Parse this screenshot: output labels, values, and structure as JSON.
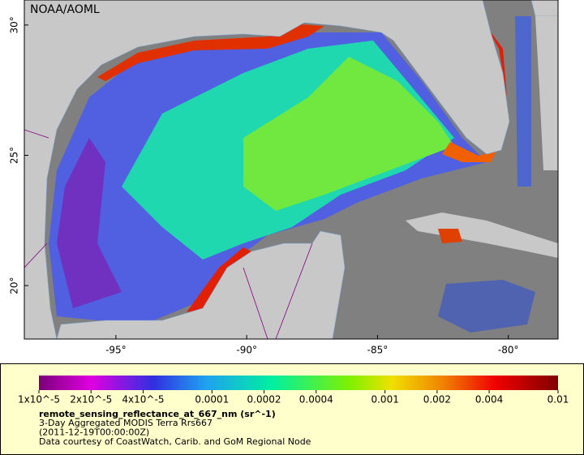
{
  "map": {
    "watermark": "NOAA/AOML",
    "xlim": [
      -98.5,
      -78.1
    ],
    "ylim": [
      17.95,
      30.96
    ],
    "xticks": [
      {
        "value": -95,
        "label": "-95°"
      },
      {
        "value": -90,
        "label": "-90°"
      },
      {
        "value": -85,
        "label": "-85°"
      },
      {
        "value": -80,
        "label": "-80°"
      }
    ],
    "yticks": [
      {
        "value": 30,
        "label": "30°"
      },
      {
        "value": 25,
        "label": "25°"
      },
      {
        "value": 20,
        "label": "20°"
      }
    ]
  },
  "colorbar": {
    "scale": "log",
    "lim": [
      1e-05,
      0.01
    ],
    "ticks": [
      {
        "value": 1e-05,
        "label": "1x10^-5"
      },
      {
        "value": 2e-05,
        "label": "2x10^-5"
      },
      {
        "value": 4e-05,
        "label": "4x10^-5"
      },
      {
        "value": 0.0001,
        "label": "0.0001"
      },
      {
        "value": 0.0002,
        "label": "0.0002"
      },
      {
        "value": 0.0004,
        "label": "0.0004"
      },
      {
        "value": 0.001,
        "label": "0.001"
      },
      {
        "value": 0.002,
        "label": "0.002"
      },
      {
        "value": 0.004,
        "label": "0.004"
      },
      {
        "value": 0.01,
        "label": "0.01"
      }
    ],
    "title": "remote_sensing_reflectance_at_667_nm (sr^-1)",
    "lines": [
      "3-Day Aggregated MODIS Terra Rrs667",
      "(2011-12-19T00:00:00Z)",
      "Data courtesy of CoastWatch, Carib. and GoM Regional Node"
    ]
  }
}
